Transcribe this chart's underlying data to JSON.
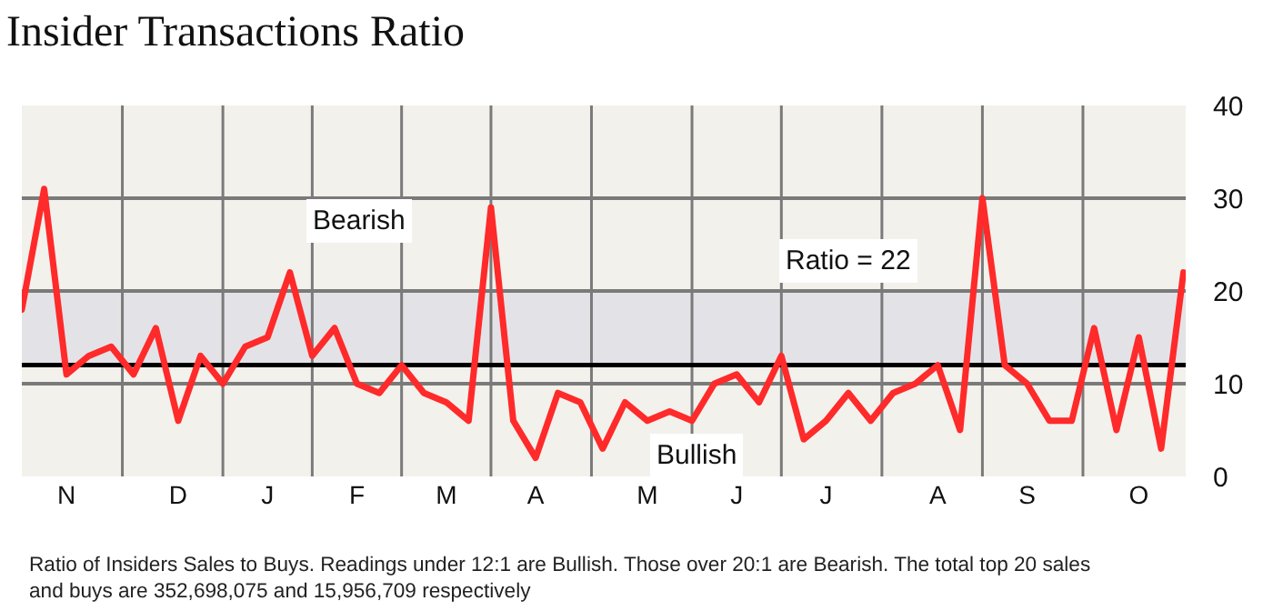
{
  "chart_data": {
    "type": "line",
    "title": "Insider Transactions Ratio",
    "categories": [
      null,
      null,
      "N",
      null,
      null,
      null,
      null,
      "D",
      null,
      null,
      null,
      "J",
      null,
      null,
      null,
      "F",
      null,
      null,
      null,
      "M",
      null,
      null,
      null,
      "A",
      null,
      null,
      null,
      null,
      "M",
      null,
      null,
      null,
      "J",
      null,
      null,
      null,
      "J",
      null,
      null,
      null,
      null,
      "A",
      null,
      null,
      null,
      "S",
      null,
      null,
      null,
      null,
      "O",
      null,
      null
    ],
    "series": [
      {
        "color": "#ff2a2a",
        "values": [
          18,
          31,
          11,
          13,
          14,
          11,
          16,
          6,
          13,
          10,
          14,
          15,
          22,
          13,
          16,
          10,
          9,
          12,
          9,
          8,
          6,
          29,
          6,
          2,
          9,
          8,
          3,
          8,
          6,
          7,
          6,
          10,
          11,
          8,
          13,
          4,
          6,
          9,
          6,
          9,
          10,
          12,
          5,
          30,
          12,
          10,
          6,
          6,
          16,
          5,
          15,
          3,
          22
        ]
      }
    ],
    "ylim": [
      0,
      40
    ],
    "yticks": [
      0,
      10,
      20,
      30,
      40
    ],
    "grid": true,
    "line_style": "solid",
    "marker": "none",
    "bands": [
      {
        "axis": "y",
        "from": 12,
        "to": 20,
        "color": "#e3e3e7"
      }
    ],
    "ref_lines": [
      {
        "axis": "y",
        "value": 12,
        "color": "#000000"
      }
    ],
    "annotations": [
      "Bearish",
      "Bullish",
      "Ratio = 22",
      "Ratio of Insiders Sales to Buys. Readings under 12:1 are Bullish. Those over 20:1 are Bearish. The total top 20 sales and buys are 352,698,075 and 15,956,709 respectively"
    ]
  }
}
